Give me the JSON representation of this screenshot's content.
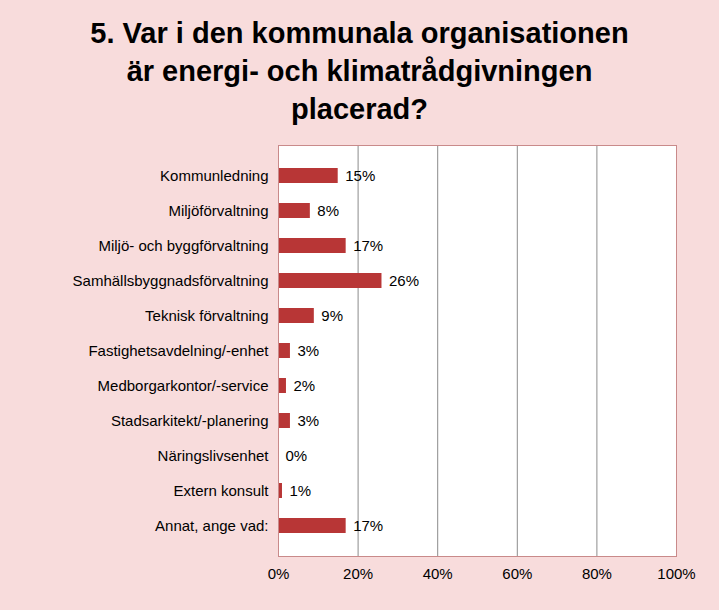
{
  "chart_data": {
    "type": "bar",
    "orientation": "horizontal",
    "title": "5. Var i den kommunala organisationen är energi- och klimatrådgivningen placerad?",
    "categories": [
      "Kommunledning",
      "Miljöförvaltning",
      "Miljö- och byggförvaltning",
      "Samhällsbyggnadsförvaltning",
      "Teknisk förvaltning",
      "Fastighetsavdelning/-enhet",
      "Medborgarkontor/-service",
      "Stadsarkitekt/-planering",
      "Näringslivsenhet",
      "Extern konsult",
      "Annat, ange vad:"
    ],
    "values": [
      15,
      8,
      17,
      26,
      9,
      3,
      2,
      3,
      0,
      1,
      17
    ],
    "value_labels": [
      "15%",
      "8%",
      "17%",
      "26%",
      "9%",
      "3%",
      "2%",
      "3%",
      "0%",
      "1%",
      "17%"
    ],
    "color": "#b83636",
    "xlim": [
      0,
      100
    ],
    "xticks": [
      {
        "value": 0,
        "label": "0%"
      },
      {
        "value": 20,
        "label": "20%"
      },
      {
        "value": 40,
        "label": "40%"
      },
      {
        "value": 60,
        "label": "60%"
      },
      {
        "value": 80,
        "label": "80%"
      },
      {
        "value": 100,
        "label": "100%"
      }
    ],
    "grid": true,
    "data_labels": true
  }
}
